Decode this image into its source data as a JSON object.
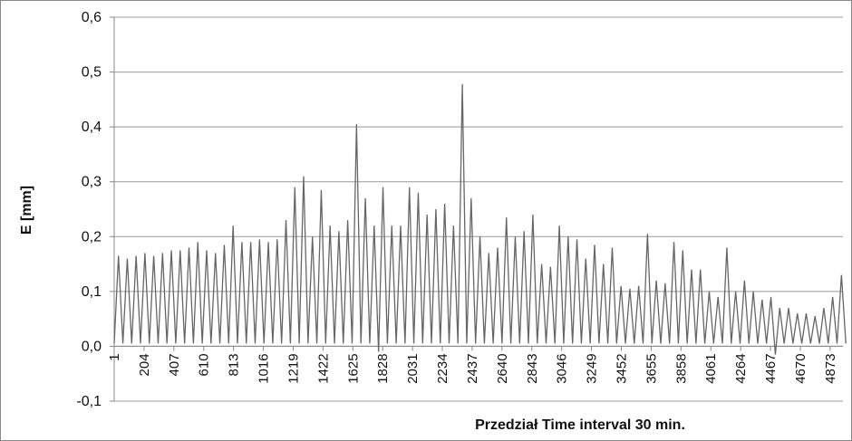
{
  "chart_data": {
    "type": "line",
    "xlabel": "Przedział Time interval 30 min.",
    "ylabel": "E [mm]",
    "grid": true,
    "xlim": [
      1,
      4960
    ],
    "ylim": [
      -0.1,
      0.6
    ],
    "xticks": [
      1,
      204,
      407,
      610,
      813,
      1016,
      1219,
      1422,
      1625,
      1828,
      2031,
      2234,
      2437,
      2640,
      2843,
      3046,
      3249,
      3452,
      3655,
      3858,
      4061,
      4264,
      4467,
      4670,
      4873
    ],
    "yticks": [
      {
        "value": -0.1,
        "label": "-0,1"
      },
      {
        "value": 0,
        "label": "0,0"
      },
      {
        "value": 0.1,
        "label": "0,1"
      },
      {
        "value": 0.2,
        "label": "0,2"
      },
      {
        "value": 0.3,
        "label": "0,3"
      },
      {
        "value": 0.4,
        "label": "0,4"
      },
      {
        "value": 0.5,
        "label": "0,5"
      },
      {
        "value": 0.6,
        "label": "0,6"
      }
    ],
    "series": [
      {
        "color": "#666666",
        "x": [
          1,
          30,
          60,
          90,
          120,
          150,
          180,
          210,
          240,
          270,
          300,
          330,
          360,
          390,
          420,
          450,
          480,
          510,
          540,
          570,
          600,
          630,
          660,
          690,
          720,
          750,
          780,
          810,
          840,
          870,
          900,
          930,
          960,
          990,
          1020,
          1050,
          1080,
          1110,
          1140,
          1170,
          1200,
          1230,
          1260,
          1290,
          1320,
          1350,
          1380,
          1410,
          1440,
          1470,
          1500,
          1530,
          1560,
          1590,
          1620,
          1650,
          1680,
          1710,
          1740,
          1770,
          1800,
          1830,
          1860,
          1890,
          1920,
          1950,
          1980,
          2010,
          2040,
          2070,
          2100,
          2130,
          2160,
          2190,
          2220,
          2250,
          2280,
          2310,
          2340,
          2370,
          2400,
          2430,
          2460,
          2490,
          2520,
          2550,
          2580,
          2610,
          2640,
          2670,
          2700,
          2730,
          2760,
          2790,
          2820,
          2850,
          2880,
          2910,
          2940,
          2970,
          3000,
          3030,
          3060,
          3090,
          3120,
          3150,
          3180,
          3210,
          3240,
          3270,
          3300,
          3330,
          3360,
          3390,
          3420,
          3450,
          3480,
          3510,
          3540,
          3570,
          3600,
          3630,
          3660,
          3690,
          3720,
          3750,
          3780,
          3810,
          3840,
          3870,
          3900,
          3930,
          3960,
          3990,
          4020,
          4050,
          4080,
          4110,
          4140,
          4170,
          4200,
          4230,
          4260,
          4290,
          4320,
          4350,
          4380,
          4410,
          4440,
          4470,
          4500,
          4530,
          4560,
          4590,
          4620,
          4650,
          4680,
          4710,
          4740,
          4770,
          4800,
          4830,
          4860,
          4890,
          4920,
          4950,
          4980
        ],
        "values": [
          0.005,
          0.165,
          0.005,
          0.16,
          0.005,
          0.165,
          0.005,
          0.17,
          0.005,
          0.165,
          0.005,
          0.17,
          0.005,
          0.175,
          0.005,
          0.175,
          0.005,
          0.18,
          0.005,
          0.19,
          0.005,
          0.175,
          0.005,
          0.17,
          0.005,
          0.185,
          0.005,
          0.22,
          0.005,
          0.19,
          0.005,
          0.19,
          0.005,
          0.195,
          0.005,
          0.19,
          0.005,
          0.195,
          0.005,
          0.23,
          0.005,
          0.29,
          0.005,
          0.31,
          0.005,
          0.2,
          0.005,
          0.285,
          0.005,
          0.22,
          0.005,
          0.21,
          0.005,
          0.23,
          0.005,
          0.405,
          0.005,
          0.27,
          0.005,
          0.22,
          -0.01,
          0.29,
          0.005,
          0.22,
          0.005,
          0.22,
          0.005,
          0.29,
          0.005,
          0.28,
          0.005,
          0.24,
          0.005,
          0.25,
          0.005,
          0.26,
          0.005,
          0.22,
          0.005,
          0.478,
          0.005,
          0.27,
          0.005,
          0.2,
          0.005,
          0.17,
          0.005,
          0.18,
          0.005,
          0.235,
          0.005,
          0.2,
          0.005,
          0.21,
          0.005,
          0.24,
          0.005,
          0.15,
          0.005,
          0.145,
          0.005,
          0.22,
          0.005,
          0.2,
          0.005,
          0.195,
          0.005,
          0.16,
          0.005,
          0.185,
          0.005,
          0.15,
          0.005,
          0.18,
          0.005,
          0.11,
          0.005,
          0.105,
          0.005,
          0.11,
          0.005,
          0.205,
          0.005,
          0.12,
          0.005,
          0.115,
          0.005,
          0.19,
          0.005,
          0.175,
          0.005,
          0.14,
          0.005,
          0.14,
          0.005,
          0.1,
          0.005,
          0.09,
          0.005,
          0.18,
          0.005,
          0.1,
          0.005,
          0.12,
          0.005,
          0.1,
          0.005,
          0.085,
          0.005,
          0.09,
          -0.015,
          0.07,
          0.005,
          0.07,
          0.005,
          0.06,
          0.005,
          0.06,
          0.005,
          0.055,
          0.005,
          0.07,
          0.005,
          0.09,
          0.005,
          0.13,
          0.005
        ]
      }
    ]
  }
}
